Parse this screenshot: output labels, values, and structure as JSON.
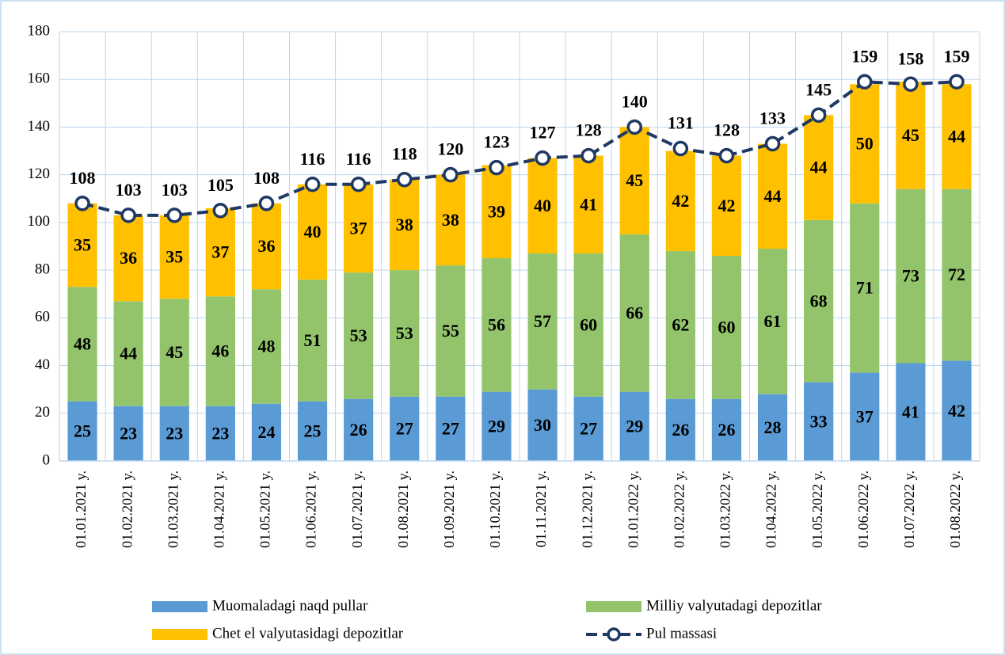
{
  "chart_data": {
    "type": "bar",
    "stacked": true,
    "categories": [
      "01.01.2021 y.",
      "01.02.2021 y.",
      "01.03.2021 y.",
      "01.04.2021 y.",
      "01.05.2021 y.",
      "01.06.2021 y.",
      "01.07.2021 y.",
      "01.08.2021 y.",
      "01.09.2021 y.",
      "01.10.2021 y.",
      "01.11.2021 y.",
      "01.12.2021 y.",
      "01.01.2022 y.",
      "01.02.2022 y.",
      "01.03.2022 y.",
      "01.04.2022 y.",
      "01.05.2022 y.",
      "01.06.2022 y.",
      "01.07.2022 y.",
      "01.08.2022 y."
    ],
    "series": [
      {
        "name": "Muomaladagi naqd pullar",
        "color": "#5b9bd5",
        "values": [
          25,
          23,
          23,
          23,
          24,
          25,
          26,
          27,
          27,
          29,
          30,
          27,
          29,
          26,
          26,
          28,
          33,
          37,
          41,
          42
        ]
      },
      {
        "name": "Milliy valyutadagi depozitlar",
        "color": "#93c46c",
        "values": [
          48,
          44,
          45,
          46,
          48,
          51,
          53,
          53,
          55,
          56,
          57,
          60,
          66,
          62,
          60,
          61,
          68,
          71,
          73,
          72
        ]
      },
      {
        "name": "Chet el valyutasidagi depozitlar",
        "color": "#ffc000",
        "values": [
          35,
          36,
          35,
          37,
          36,
          40,
          37,
          38,
          38,
          39,
          40,
          41,
          45,
          42,
          42,
          44,
          44,
          50,
          45,
          44
        ]
      },
      {
        "name": "Pul massasi",
        "color": "#1f3864",
        "type": "line",
        "values": [
          108,
          103,
          103,
          105,
          108,
          116,
          116,
          118,
          120,
          123,
          127,
          128,
          140,
          131,
          128,
          133,
          145,
          159,
          158,
          159
        ]
      }
    ],
    "ylim": [
      0,
      180
    ],
    "yticks": [
      0,
      20,
      40,
      60,
      80,
      100,
      120,
      140,
      160,
      180
    ],
    "grid": true,
    "legend": "bottom"
  }
}
